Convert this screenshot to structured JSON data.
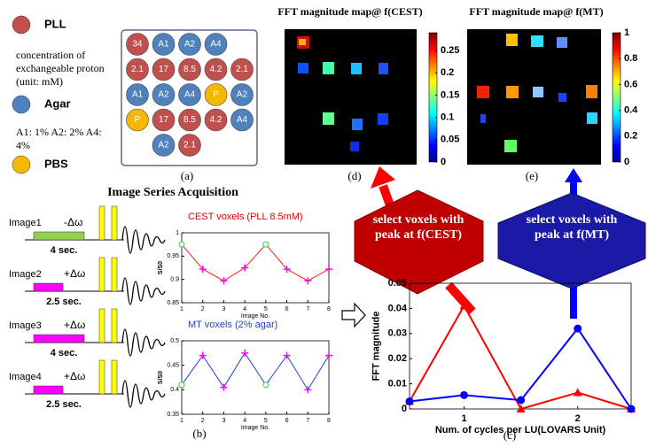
{
  "legend": [
    {
      "label": "PLL",
      "color": "#c0504d"
    },
    {
      "label": "Agar",
      "color": "#4f81bd"
    },
    {
      "label": "PBS",
      "color": "#f5b800"
    }
  ],
  "legend_notes": [
    "concentration of exchangeable proton (unit:  mM)",
    "A1: 1%   A2: 2%  A4: 4%"
  ],
  "plate": [
    [
      {
        "label": "34",
        "kind": "PLL"
      },
      {
        "label": "A1",
        "kind": "Agar"
      },
      {
        "label": "A2",
        "kind": "Agar"
      },
      {
        "label": "A4",
        "kind": "Agar"
      },
      null
    ],
    [
      {
        "label": "2.1",
        "kind": "PLL"
      },
      {
        "label": "17",
        "kind": "PLL"
      },
      {
        "label": "8.5",
        "kind": "PLL"
      },
      {
        "label": "4.2",
        "kind": "PLL"
      },
      {
        "label": "2.1",
        "kind": "PLL"
      }
    ],
    [
      {
        "label": "A1",
        "kind": "Agar"
      },
      {
        "label": "A2",
        "kind": "Agar"
      },
      {
        "label": "A4",
        "kind": "Agar"
      },
      {
        "label": "P",
        "kind": "PBS"
      },
      {
        "label": "A2",
        "kind": "Agar"
      }
    ],
    [
      {
        "label": "P",
        "kind": "PBS"
      },
      {
        "label": "17",
        "kind": "PLL"
      },
      {
        "label": "8.5",
        "kind": "PLL"
      },
      {
        "label": "4.2",
        "kind": "PLL"
      },
      {
        "label": "A4",
        "kind": "Agar"
      }
    ],
    [
      null,
      {
        "label": "A2",
        "kind": "Agar"
      },
      {
        "label": "2.1",
        "kind": "PLL"
      },
      null,
      null
    ]
  ],
  "acquisition": {
    "title": "Image Series Acquisition",
    "images": [
      {
        "name": "Image1",
        "offset": "-Δω",
        "duration": "4 sec.",
        "color": "#92d050"
      },
      {
        "name": "Image2",
        "offset": "+Δω",
        "duration": "2.5 sec.",
        "color": "#ff00ff"
      },
      {
        "name": "Image3",
        "offset": "+Δω",
        "duration": "4 sec.",
        "color": "#ff00ff"
      },
      {
        "name": "Image4",
        "offset": "+Δω",
        "duration": "2.5 sec.",
        "color": "#ff00ff"
      }
    ]
  },
  "decisions": [
    {
      "text": "select voxels with peak at f(CEST)",
      "color": "#c00000"
    },
    {
      "text": "select voxels with peak at f(MT)",
      "color": "#1a1aa6"
    }
  ],
  "panel_labels": [
    "(a)",
    "(b)",
    "(c)",
    "(d)",
    "(e)"
  ],
  "chart_data": [
    {
      "type": "line",
      "title": "CEST voxels (PLL  8.5mM)",
      "title_color": "#e00000",
      "xlabel": "Image No.",
      "ylabel": "S/S0",
      "x": [
        1,
        2,
        3,
        4,
        5,
        6,
        7,
        8
      ],
      "xlim": [
        1,
        8
      ],
      "xticks": [
        1,
        2,
        3,
        4,
        5,
        6,
        7,
        8
      ],
      "ylim": [
        0.85,
        1
      ],
      "yticks": [
        0.85,
        0.9,
        0.95,
        1
      ],
      "series": [
        {
          "color": "#ff2020",
          "values": [
            0.975,
            0.922,
            0.897,
            0.925,
            0.975,
            0.922,
            0.897,
            0.922
          ],
          "markers": [
            "circle",
            "plus",
            "plus",
            "plus",
            "circle",
            "plus",
            "plus",
            "plus"
          ]
        }
      ],
      "marker_colors": {
        "circle": "#33cc33",
        "plus": "#ff00ff"
      }
    },
    {
      "type": "line",
      "title": "MT voxels (2% agar)",
      "title_color": "#1f3fd0",
      "xlabel": "Image No.",
      "ylabel": "S/S0",
      "x": [
        1,
        2,
        3,
        4,
        5,
        6,
        7,
        8
      ],
      "xlim": [
        1,
        8
      ],
      "xticks": [
        1,
        2,
        3,
        4,
        5,
        6,
        7,
        8
      ],
      "ylim": [
        0.35,
        0.5
      ],
      "yticks": [
        0.35,
        0.4,
        0.45,
        0.5
      ],
      "series": [
        {
          "color": "#1f3fd0",
          "values": [
            0.41,
            0.47,
            0.405,
            0.475,
            0.41,
            0.47,
            0.4,
            0.47
          ],
          "markers": [
            "circle",
            "plus",
            "plus",
            "plus",
            "circle",
            "plus",
            "plus",
            "plus"
          ]
        }
      ],
      "marker_colors": {
        "circle": "#33cc33",
        "plus": "#ff00ff"
      }
    },
    {
      "type": "line",
      "xlabel": "Num. of cycles per LU(LOVARS Unit)",
      "ylabel": "FFT magnitude",
      "x": [
        0.52,
        1,
        1.5,
        2,
        2.47
      ],
      "xlim": [
        0.52,
        2.47
      ],
      "xticks": [
        1,
        2
      ],
      "ylim": [
        0,
        0.05
      ],
      "yticks": [
        0,
        0.01,
        0.02,
        0.03,
        0.04,
        0.05
      ],
      "series": [
        {
          "color": "#ff0000",
          "marker": "triangle",
          "values": [
            0.003,
            0.041,
            0.0,
            0.0065,
            0.0
          ]
        },
        {
          "color": "#0000ff",
          "marker": "circle",
          "values": [
            0.003,
            0.0055,
            0.0035,
            0.032,
            0.0
          ]
        }
      ]
    },
    {
      "type": "heatmap",
      "title": "FFT magnitude map@ f(CEST)",
      "colormap": "jet",
      "ylim": [
        0,
        0.29
      ],
      "yticks": [
        0,
        0.05,
        0.1,
        0.15,
        0.2,
        0.25
      ]
    },
    {
      "type": "heatmap",
      "title": "FFT magnitude map@ f(MT)",
      "colormap": "jet",
      "ylim": [
        0,
        1
      ],
      "yticks": [
        0,
        0.2,
        0.4,
        0.6,
        0.8,
        1
      ]
    }
  ]
}
